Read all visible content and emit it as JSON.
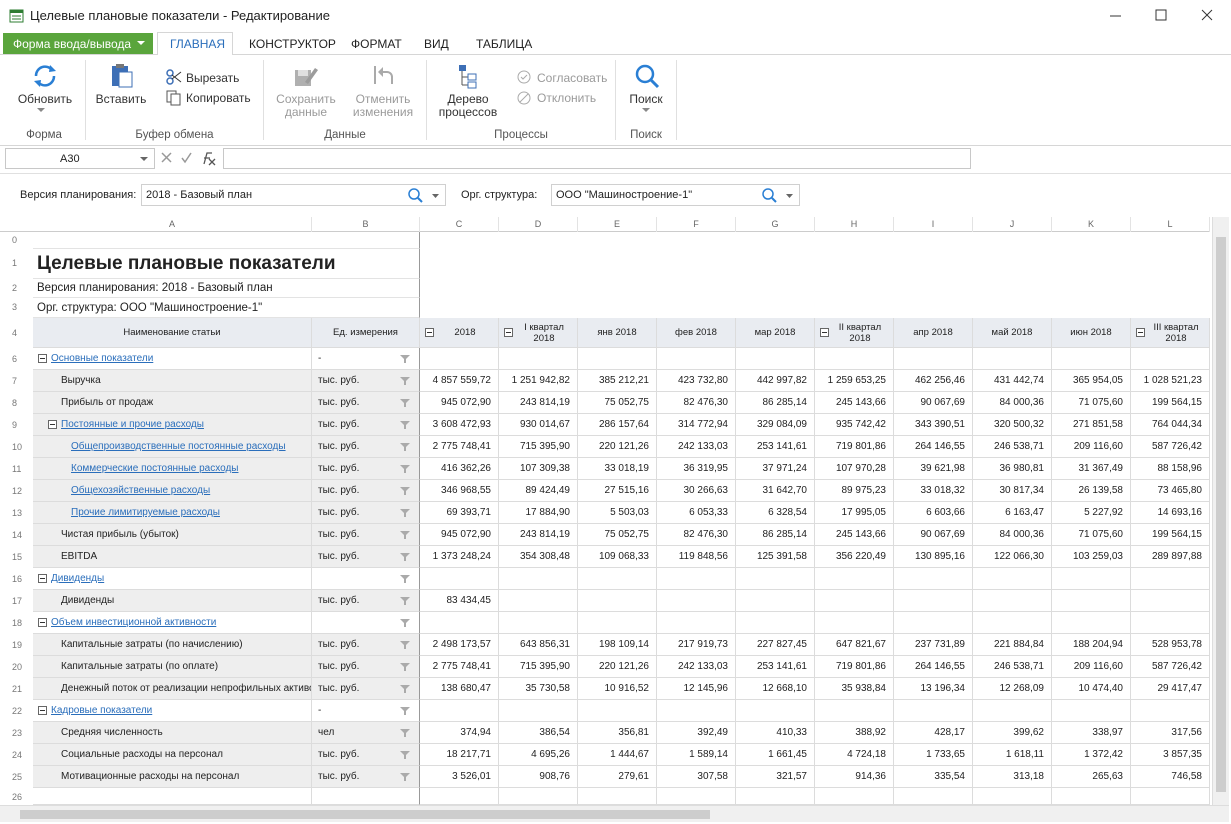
{
  "window": {
    "title": "Целевые плановые показатели - Редактирование"
  },
  "ribbon": {
    "form_button": "Форма ввода/вывода",
    "tabs": [
      "ГЛАВНАЯ",
      "КОНСТРУКТОР",
      "ФОРМАТ",
      "ВИД",
      "ТАБЛИЦА"
    ],
    "groups": [
      {
        "label": "Форма",
        "buttons": [
          "Обновить"
        ]
      },
      {
        "label": "Буфер обмена",
        "buttons": [
          "Вставить",
          "Вырезать",
          "Копировать"
        ]
      },
      {
        "label": "Данные",
        "buttons": [
          "Сохранить данные",
          "Отменить изменения"
        ]
      },
      {
        "label": "Процессы",
        "buttons": [
          "Дерево процессов",
          "Согласовать",
          "Отклонить"
        ]
      },
      {
        "label": "Поиск",
        "buttons": [
          "Поиск"
        ]
      }
    ]
  },
  "formula_bar": {
    "cell": "A30"
  },
  "filters": [
    {
      "label": "Версия планирования:",
      "value": "2018 - Базовый план"
    },
    {
      "label": "Орг. структура:",
      "value": "ООО \"Машиностроение-1\""
    }
  ],
  "sheet": {
    "columns": [
      "A",
      "B",
      "C",
      "D",
      "E",
      "F",
      "G",
      "H",
      "I",
      "J",
      "K",
      "L"
    ],
    "top_rows": [
      {
        "num": 0
      },
      {
        "num": 1,
        "text": "Целевые плановые показатели"
      },
      {
        "num": 2,
        "text": "Версия планирования: 2018 - Базовый план"
      },
      {
        "num": 3,
        "text": "Орг. структура: ООО \"Машиностроение-1\""
      }
    ],
    "header_row": {
      "num": 4,
      "name": "Наименование статьи",
      "unit": "Ед. измерения",
      "periods": [
        {
          "label": "2018",
          "group": true
        },
        {
          "label": "I квартал 2018",
          "group": true
        },
        {
          "label": "янв 2018"
        },
        {
          "label": "фев 2018"
        },
        {
          "label": "мар 2018"
        },
        {
          "label": "II квартал 2018",
          "group": true
        },
        {
          "label": "апр 2018"
        },
        {
          "label": "май 2018"
        },
        {
          "label": "июн 2018"
        },
        {
          "label": "III квартал 2018",
          "group": true
        }
      ]
    },
    "rows": [
      {
        "num": 6,
        "name": "Основные показатели",
        "unit": "-",
        "level": 0,
        "group": true,
        "link": true
      },
      {
        "num": 7,
        "name": "Выручка",
        "unit": "тыс. руб.",
        "level": 1,
        "values": [
          "4 857 559,72",
          "1 251 942,82",
          "385 212,21",
          "423 732,80",
          "442 997,82",
          "1 259 653,25",
          "462 256,46",
          "431 442,74",
          "365 954,05",
          "1 028 521,23"
        ]
      },
      {
        "num": 8,
        "name": "Прибыль от продаж",
        "unit": "тыс. руб.",
        "level": 1,
        "values": [
          "945 072,90",
          "243 814,19",
          "75 052,75",
          "82 476,30",
          "86 285,14",
          "245 143,66",
          "90 067,69",
          "84 000,36",
          "71 075,60",
          "199 564,15"
        ]
      },
      {
        "num": 9,
        "name": "Постоянные и прочие расходы",
        "unit": "тыс. руб.",
        "level": 1,
        "group": true,
        "link": true,
        "values": [
          "3 608 472,93",
          "930 014,67",
          "286 157,64",
          "314 772,94",
          "329 084,09",
          "935 742,42",
          "343 390,51",
          "320 500,32",
          "271 851,58",
          "764 044,34"
        ]
      },
      {
        "num": 10,
        "name": "Общепроизводственные постоянные расходы",
        "unit": "тыс. руб.",
        "level": 2,
        "link": true,
        "values": [
          "2 775 748,41",
          "715 395,90",
          "220 121,26",
          "242 133,03",
          "253 141,61",
          "719 801,86",
          "264 146,55",
          "246 538,71",
          "209 116,60",
          "587 726,42"
        ]
      },
      {
        "num": 11,
        "name": "Коммерческие постоянные расходы",
        "unit": "тыс. руб.",
        "level": 2,
        "link": true,
        "values": [
          "416 362,26",
          "107 309,38",
          "33 018,19",
          "36 319,95",
          "37 971,24",
          "107 970,28",
          "39 621,98",
          "36 980,81",
          "31 367,49",
          "88 158,96"
        ]
      },
      {
        "num": 12,
        "name": "Общехозяйственные расходы",
        "unit": "тыс. руб.",
        "level": 2,
        "link": true,
        "values": [
          "346 968,55",
          "89 424,49",
          "27 515,16",
          "30 266,63",
          "31 642,70",
          "89 975,23",
          "33 018,32",
          "30 817,34",
          "26 139,58",
          "73 465,80"
        ]
      },
      {
        "num": 13,
        "name": "Прочие лимитируемые расходы",
        "unit": "тыс. руб.",
        "level": 2,
        "link": true,
        "values": [
          "69 393,71",
          "17 884,90",
          "5 503,03",
          "6 053,33",
          "6 328,54",
          "17 995,05",
          "6 603,66",
          "6 163,47",
          "5 227,92",
          "14 693,16"
        ]
      },
      {
        "num": 14,
        "name": "Чистая прибыль (убыток)",
        "unit": "тыс. руб.",
        "level": 1,
        "values": [
          "945 072,90",
          "243 814,19",
          "75 052,75",
          "82 476,30",
          "86 285,14",
          "245 143,66",
          "90 067,69",
          "84 000,36",
          "71 075,60",
          "199 564,15"
        ]
      },
      {
        "num": 15,
        "name": "EBITDA",
        "unit": "тыс. руб.",
        "level": 1,
        "values": [
          "1 373 248,24",
          "354 308,48",
          "109 068,33",
          "119 848,56",
          "125 391,58",
          "356 220,49",
          "130 895,16",
          "122 066,30",
          "103 259,03",
          "289 897,88"
        ]
      },
      {
        "num": 16,
        "name": "Дивиденды",
        "level": 0,
        "group": true,
        "link": true
      },
      {
        "num": 17,
        "name": "Дивиденды",
        "unit": "тыс. руб.",
        "level": 1,
        "values": [
          "83 434,45"
        ]
      },
      {
        "num": 18,
        "name": "Объем инвестиционной активности",
        "level": 0,
        "group": true,
        "link": true
      },
      {
        "num": 19,
        "name": "Капитальные затраты (по начислению)",
        "unit": "тыс. руб.",
        "level": 1,
        "values": [
          "2 498 173,57",
          "643 856,31",
          "198 109,14",
          "217 919,73",
          "227 827,45",
          "647 821,67",
          "237 731,89",
          "221 884,84",
          "188 204,94",
          "528 953,78"
        ]
      },
      {
        "num": 20,
        "name": "Капитальные затраты (по оплате)",
        "unit": "тыс. руб.",
        "level": 1,
        "values": [
          "2 775 748,41",
          "715 395,90",
          "220 121,26",
          "242 133,03",
          "253 141,61",
          "719 801,86",
          "264 146,55",
          "246 538,71",
          "209 116,60",
          "587 726,42"
        ]
      },
      {
        "num": 21,
        "name": "Денежный поток от реализации непрофильных активов",
        "unit": "тыс. руб.",
        "level": 1,
        "values": [
          "138 680,47",
          "35 730,58",
          "10 916,52",
          "12 145,96",
          "12 668,10",
          "35 938,84",
          "13 196,34",
          "12 268,09",
          "10 474,40",
          "29 417,47"
        ]
      },
      {
        "num": 22,
        "name": "Кадровые показатели",
        "unit": "-",
        "level": 0,
        "group": true,
        "link": true
      },
      {
        "num": 23,
        "name": "Средняя численность",
        "unit": "чел",
        "level": 1,
        "values": [
          "374,94",
          "386,54",
          "356,81",
          "392,49",
          "410,33",
          "388,92",
          "428,17",
          "399,62",
          "338,97",
          "317,56"
        ]
      },
      {
        "num": 24,
        "name": "Социальные расходы на персонал",
        "unit": "тыс. руб.",
        "level": 1,
        "values": [
          "18 217,71",
          "4 695,26",
          "1 444,67",
          "1 589,14",
          "1 661,45",
          "4 724,18",
          "1 733,65",
          "1 618,11",
          "1 372,42",
          "3 857,35"
        ]
      },
      {
        "num": 25,
        "name": "Мотивационные расходы на персонал",
        "unit": "тыс. руб.",
        "level": 1,
        "values": [
          "3 526,01",
          "908,76",
          "279,61",
          "307,58",
          "321,57",
          "914,36",
          "335,54",
          "313,18",
          "265,63",
          "746,58"
        ]
      },
      {
        "num": 26
      }
    ]
  }
}
